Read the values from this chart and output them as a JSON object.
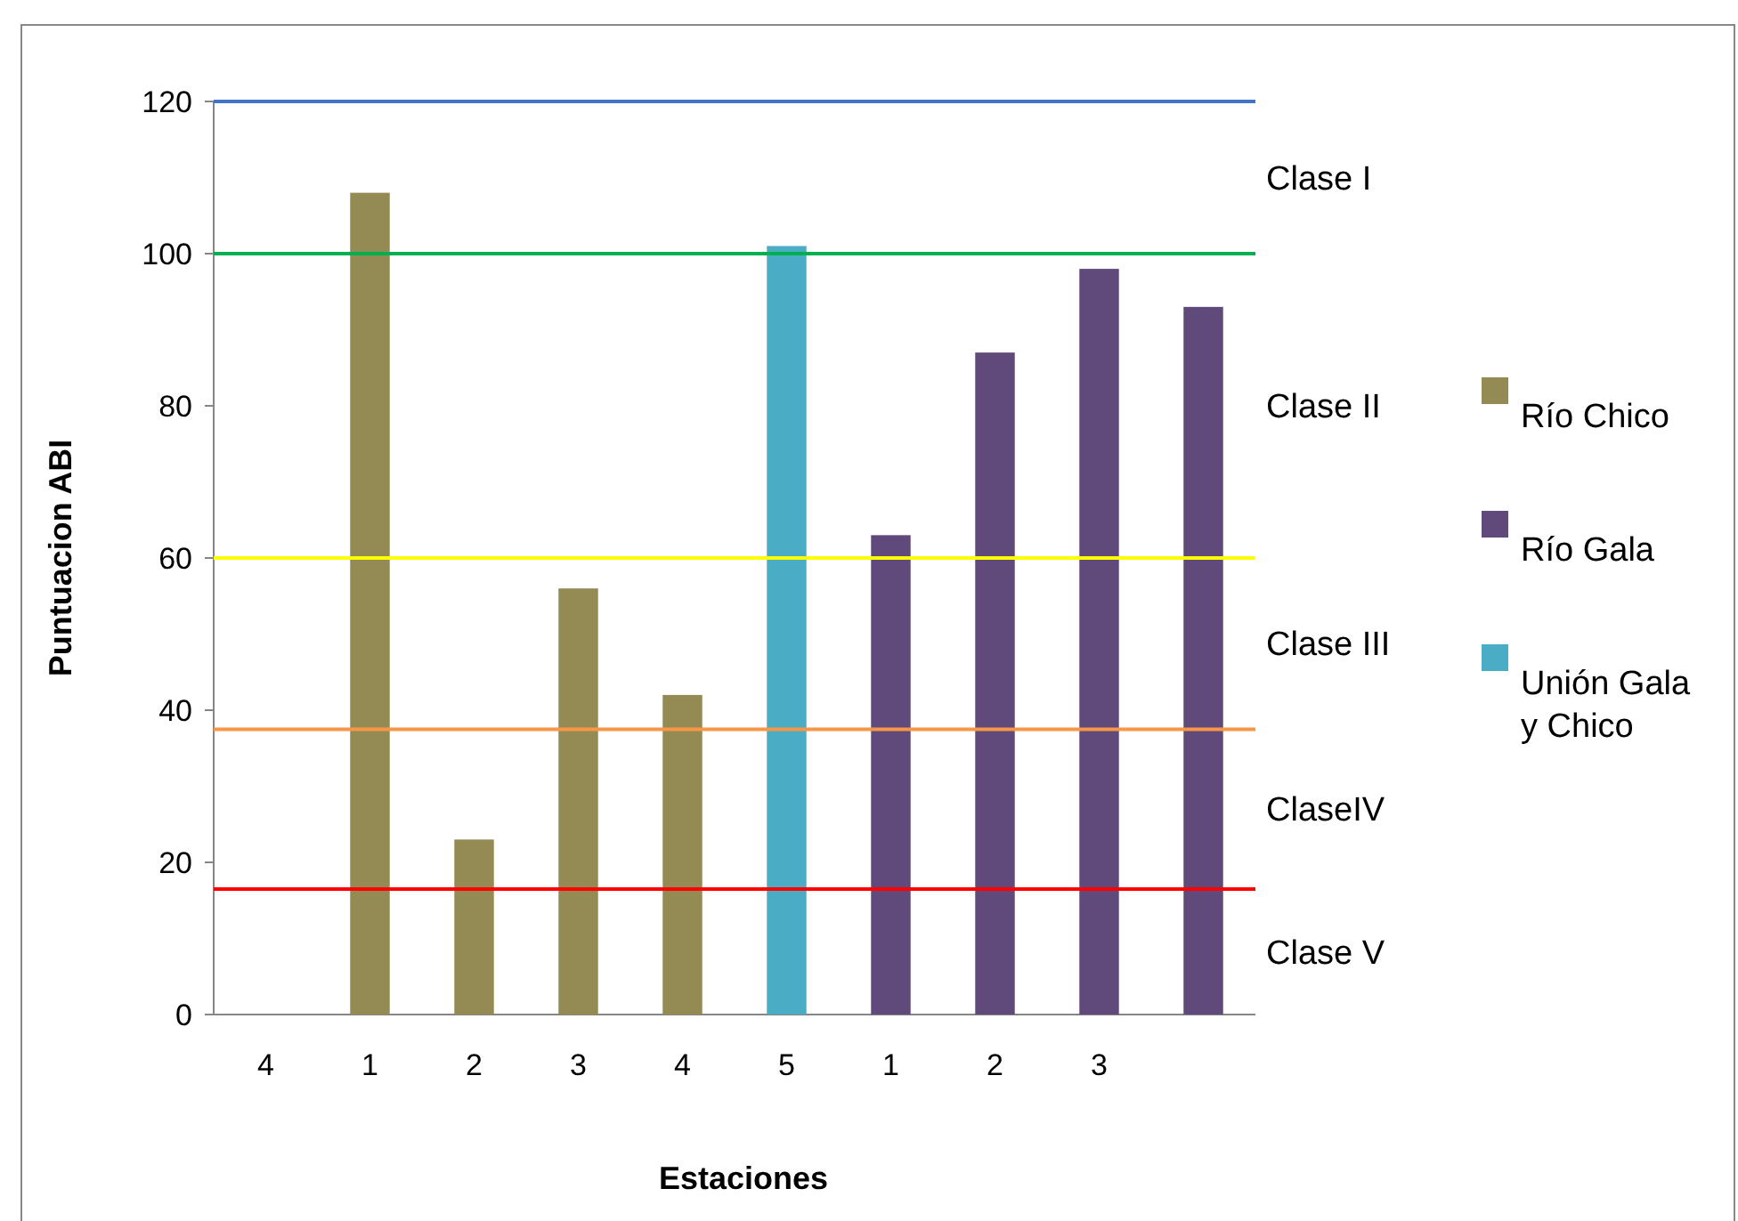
{
  "chart_data": {
    "type": "bar",
    "xlabel": "Estaciones",
    "ylabel": "Puntuacion ABI",
    "categories": [
      "4",
      "1",
      "2",
      "3",
      "4",
      "5",
      "1",
      "2",
      "3",
      null
    ],
    "series": [
      {
        "name": "Río Chico",
        "color": "#948a54",
        "values": [
          null,
          108,
          23,
          56,
          42,
          null,
          null,
          null,
          null,
          null
        ]
      },
      {
        "name": "Río Gala",
        "color": "#604a7b",
        "values": [
          null,
          null,
          null,
          null,
          null,
          null,
          63,
          87,
          98,
          93
        ]
      },
      {
        "name": "Unión Gala y Chico",
        "color": "#4bacc6",
        "values": [
          null,
          null,
          null,
          null,
          null,
          101,
          null,
          null,
          null,
          null
        ]
      }
    ],
    "ylim": [
      0,
      120
    ],
    "yticks": [
      0,
      20,
      40,
      60,
      80,
      100,
      120
    ],
    "grid": false,
    "legend": "right",
    "ref_lines": [
      {
        "axis": "y",
        "value": 120,
        "color": "#4472c4"
      },
      {
        "axis": "y",
        "value": 100,
        "color": "#00b050"
      },
      {
        "axis": "y",
        "value": 60,
        "color": "#ffff00"
      },
      {
        "axis": "y",
        "value": 37.5,
        "color": "#f79646"
      },
      {
        "axis": "y",
        "value": 16.5,
        "color": "#ff0000"
      }
    ],
    "annotations": [
      "Clase I",
      "Clase II",
      "Clase III",
      "ClaseIV",
      "Clase V"
    ]
  }
}
